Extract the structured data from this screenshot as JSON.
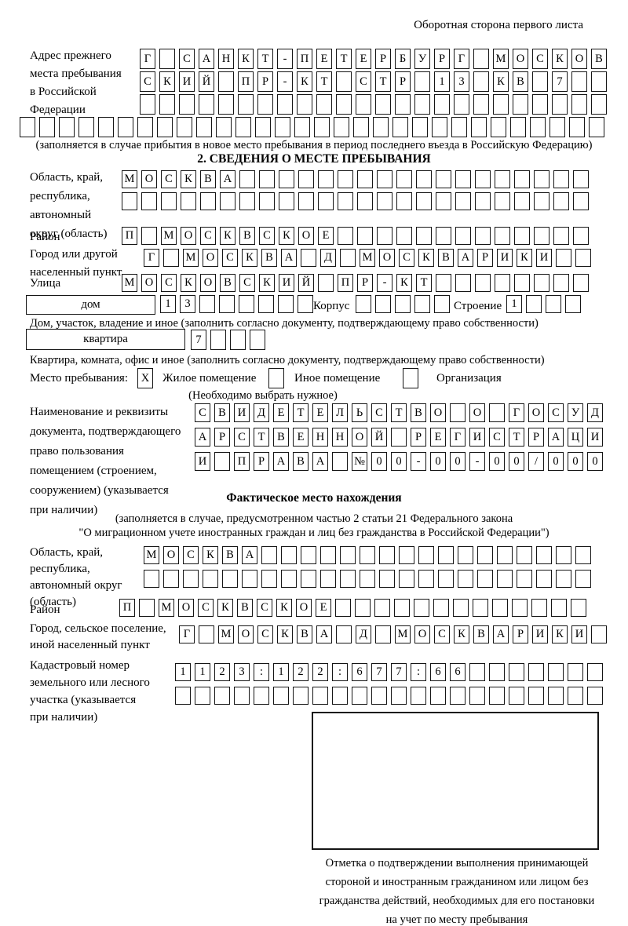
{
  "page": {
    "top_right": "Оборотная сторона первого листа"
  },
  "prev_address": {
    "label": "Адрес прежнего\nместа пребывания\nв Российской\nФедерации",
    "row1": {
      "text": "Г САНКТ-ПЕТЕРБУРГ МОСКОВ",
      "count": 24
    },
    "row2": {
      "text": "СКИЙ ПР-КТ СТР 13 КВ 7",
      "count": 24
    },
    "row3": {
      "text": "",
      "count": 24
    },
    "row4": {
      "text": "",
      "count": 30
    },
    "note": "(заполняется в случае прибытия в новое место пребывания в период последнего въезда в Российскую Федерацию)"
  },
  "section2": {
    "title": "2. СВЕДЕНИЯ О МЕСТЕ ПРЕБЫВАНИЯ",
    "region": {
      "label": "Область, край,\nреспублика,\nавтономный\nокруг (область)",
      "row1": {
        "text": "МОСКВА",
        "count": 24
      },
      "row2": {
        "text": "",
        "count": 24
      }
    },
    "district": {
      "label": "Район",
      "row": {
        "text": "П МОСКВСКОЕ",
        "count": 24
      }
    },
    "city": {
      "label": "Город или другой\nнаселенный пункт",
      "row": {
        "text": "Г МОСКВА Д МОСКВАРИКИ",
        "count": 23
      }
    },
    "street": {
      "label": "Улица",
      "row": {
        "text": "МОСКОВСКИЙ ПР-КТ",
        "count": 24
      }
    },
    "house": {
      "box_label": "дом",
      "cells": {
        "text": "13",
        "count": 8
      },
      "korpus_label": "Корпус",
      "korpus_cells": {
        "text": "",
        "count": 5
      },
      "stroenie_label": "Строение",
      "stroenie_cells": {
        "text": "1",
        "count": 4
      },
      "note": "Дом, участок, владение и иное (заполнить согласно документу, подтверждающему право собственности)"
    },
    "apartment": {
      "box_label": "квартира",
      "cells": {
        "text": "7",
        "count": 4
      },
      "note": "Квартира, комната, офис и иное (заполнить согласно документу, подтверждающему право собственности)"
    },
    "residence": {
      "label": "Место пребывания:",
      "box1": {
        "text": "X",
        "count": 1
      },
      "opt1": "Жилое помещение",
      "box2": {
        "text": "",
        "count": 1
      },
      "opt2": "Иное помещение",
      "box3": {
        "text": "",
        "count": 1
      },
      "opt3": "Организация",
      "note": "(Необходимо выбрать нужное)"
    },
    "document": {
      "label": "Наименование и реквизиты\nдокумента, подтверждающего\nправо пользования\nпомещением (строением,\nсооружением) (указывается\nпри наличии)",
      "row1": {
        "text": "СВИДЕТЕЛЬСТВО О ГОСУД",
        "count": 21
      },
      "row2": {
        "text": "АРСТВЕННОЙ РЕГИСТРАЦИ",
        "count": 21
      },
      "row3": {
        "text": "И ПРАВА №00-00-00/000",
        "count": 21
      }
    }
  },
  "fact": {
    "title": "Фактическое место нахождения",
    "note1": "(заполняется в случае, предусмотренном частью 2 статьи 21 Федерального закона",
    "note2": "\"О миграционном учете иностранных граждан и лиц без гражданства в Российской Федерации\")",
    "region": {
      "label": "Область, край,\nреспублика,\nавтономный округ\n(область)",
      "row1": {
        "text": "МОСКВА",
        "count": 23
      },
      "row2": {
        "text": "",
        "count": 23
      }
    },
    "district": {
      "label": "Район",
      "row": {
        "text": "П МОСКВСКОЕ",
        "count": 24
      }
    },
    "city": {
      "label": "Город, сельское поселение,\nиной населенный пункт",
      "row": {
        "text": "Г МОСКВА Д МОСКВАРИКИ",
        "count": 22
      }
    },
    "cadastral": {
      "label": "Кадастровый номер\nземельного или лесного\nучастка (указывается\nпри наличии)",
      "row1": {
        "text": "1123:122:677:66",
        "count": 22
      },
      "row2": {
        "text": "",
        "count": 22
      }
    }
  },
  "stamp": {
    "caption": "Отметка о подтверждении выполнения принимающей\nстороной и иностранным гражданином или лицом без\nгражданства действий, необходимых для его постановки\nна учет по месту пребывания"
  }
}
